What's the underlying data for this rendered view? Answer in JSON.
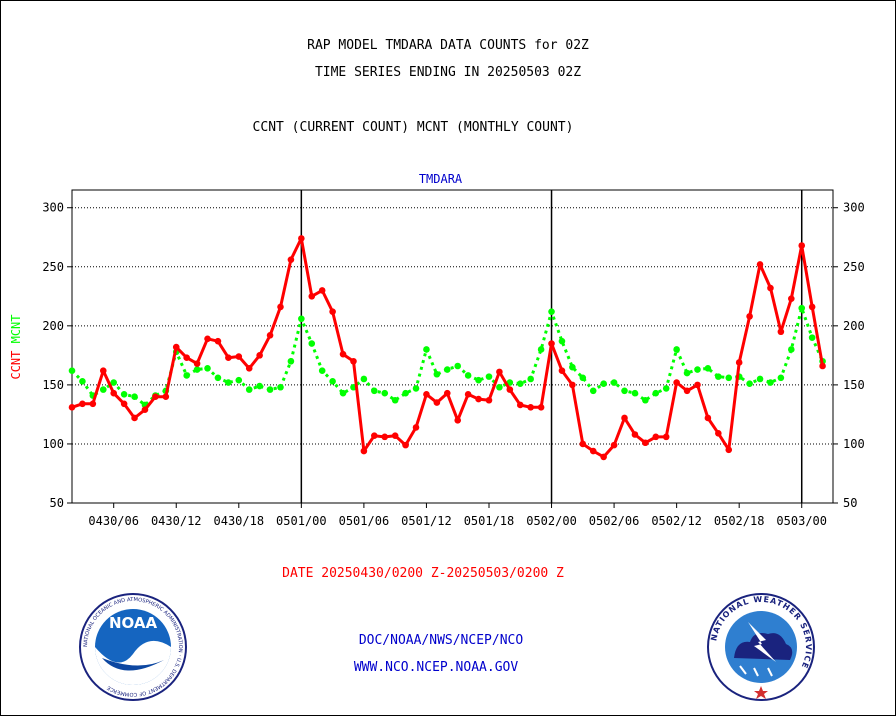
{
  "header": {
    "line1": "RAP MODEL TMDARA DATA COUNTS for 02Z",
    "line2": "TIME SERIES ENDING IN 20250503 02Z",
    "line3": "CCNT (CURRENT COUNT) MCNT (MONTHLY COUNT)"
  },
  "footer": {
    "date_range": "DATE 20250430/0200 Z-20250503/0200 Z",
    "link1": "DOC/NOAA/NWS/NCEP/NCO",
    "link2": "WWW.NCO.NCEP.NOAA.GOV"
  },
  "logos": {
    "left": {
      "icon": "noaa-logo",
      "text": "NOAA",
      "ring_text": "NATIONAL OCEANIC AND ATMOSPHERIC ADMINISTRATION · U.S. DEPARTMENT OF COMMERCE"
    },
    "right": {
      "icon": "nws-logo",
      "ring_text": "NATIONAL WEATHER SERVICE"
    }
  },
  "colors": {
    "ccnt": "#ff0000",
    "mcnt": "#00ff00",
    "panel_title": "#0000cc",
    "footer_link": "#0000cc",
    "footer_date": "#ff0000"
  },
  "chart_data": {
    "type": "line",
    "title": "TMDARA",
    "ylabel_parts": [
      "CCNT",
      "MCNT"
    ],
    "ylim": [
      50,
      315
    ],
    "xlim_hours": [
      0,
      73
    ],
    "yticks": [
      50,
      100,
      150,
      200,
      250,
      300
    ],
    "xtick_labels": [
      {
        "hour": 4,
        "label": "0430/06"
      },
      {
        "hour": 10,
        "label": "0430/12"
      },
      {
        "hour": 16,
        "label": "0430/18"
      },
      {
        "hour": 22,
        "label": "0501/00"
      },
      {
        "hour": 28,
        "label": "0501/06"
      },
      {
        "hour": 34,
        "label": "0501/12"
      },
      {
        "hour": 40,
        "label": "0501/18"
      },
      {
        "hour": 46,
        "label": "0502/00"
      },
      {
        "hour": 52,
        "label": "0502/06"
      },
      {
        "hour": 58,
        "label": "0502/12"
      },
      {
        "hour": 64,
        "label": "0502/18"
      },
      {
        "hour": 70,
        "label": "0503/00"
      }
    ],
    "day_boundaries": [
      22,
      46,
      70
    ],
    "grid": true,
    "series": [
      {
        "name": "CCNT",
        "style": "solid",
        "values": [
          131,
          134,
          134,
          162,
          143,
          134,
          122,
          129,
          140,
          140,
          182,
          173,
          168,
          189,
          187,
          173,
          174,
          164,
          175,
          192,
          216,
          256,
          274,
          225,
          230,
          212,
          176,
          170,
          94,
          107,
          106,
          107,
          99,
          114,
          142,
          135,
          143,
          120,
          142,
          138,
          137,
          161,
          146,
          133,
          131,
          131,
          185,
          162,
          150,
          100,
          94,
          89,
          99,
          122,
          108,
          101,
          106,
          106,
          152,
          145,
          150,
          122,
          109,
          95,
          169,
          208,
          252,
          232,
          195,
          223,
          268,
          216,
          166
        ]
      },
      {
        "name": "MCNT",
        "style": "dotted",
        "values": [
          162,
          153,
          141,
          146,
          152,
          142,
          140,
          133,
          141,
          145,
          178,
          158,
          163,
          164,
          156,
          152,
          154,
          146,
          149,
          146,
          148,
          170,
          206,
          185,
          162,
          153,
          143,
          148,
          155,
          145,
          143,
          137,
          143,
          147,
          180,
          159,
          163,
          166,
          158,
          154,
          157,
          148,
          152,
          151,
          155,
          180,
          212,
          187,
          165,
          156,
          145,
          151,
          152,
          145,
          143,
          137,
          143,
          147,
          180,
          160,
          163,
          164,
          157,
          156,
          157,
          151,
          155,
          152,
          156,
          180,
          215,
          190,
          170
        ]
      }
    ]
  }
}
